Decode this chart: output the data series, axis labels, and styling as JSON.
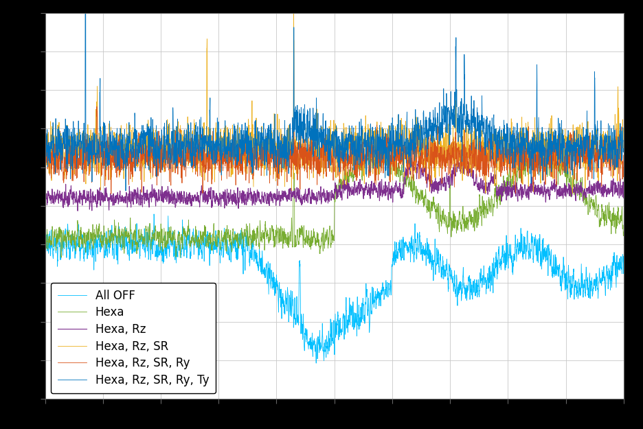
{
  "legend_entries": [
    "Hexa, Rz, SR, Ry, Ty",
    "Hexa, Rz, SR, Ry",
    "Hexa, Rz, SR",
    "Hexa, Rz",
    "Hexa",
    "All OFF"
  ],
  "line_colors": [
    "#0072BD",
    "#D95319",
    "#EDB120",
    "#7E2F8E",
    "#77AC30",
    "#00BFFF"
  ],
  "background_color": "#000000",
  "axes_facecolor": "#ffffff",
  "grid_color": "#c8c8c8",
  "n_points": 4000,
  "figsize": [
    9.36,
    6.25
  ],
  "dpi": 100,
  "legend_loc": "lower left",
  "legend_fontsize": 12
}
